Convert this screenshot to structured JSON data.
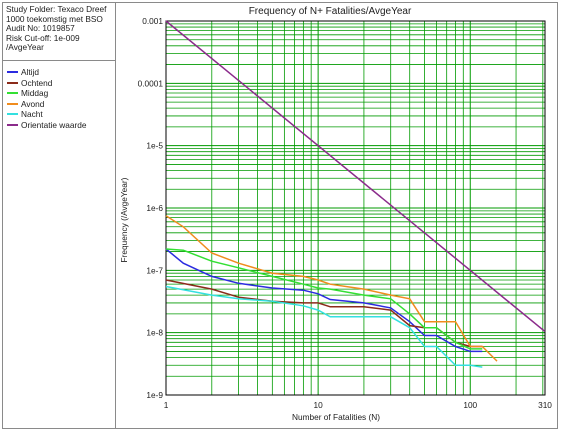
{
  "info": {
    "lines": [
      "Study Folder: Texaco Dreef",
      "1000 toekomstig met BSO",
      "Audit No: 1019857",
      "Risk Cut-off: 1e-009",
      "/AvgeYear"
    ]
  },
  "colors": {
    "grid": "#009a00",
    "Altijd": "#2b2be0",
    "Ochtend": "#8b2b1a",
    "Middag": "#33e033",
    "Avond": "#f08c1e",
    "Nacht": "#33e0e0",
    "Orientatie waarde": "#8b2b8b"
  },
  "chart_data": {
    "type": "line",
    "title": "Frequency of N+ Fatalities/AvgeYear",
    "xlabel": "Number of Fatalities (N)",
    "ylabel": "Frequency (/AvgeYear)",
    "xscale": "log",
    "yscale": "log",
    "xlim": [
      1,
      310
    ],
    "ylim": [
      1e-09,
      0.001
    ],
    "grid": true,
    "xticks": [
      {
        "value": 1,
        "label": "1"
      },
      {
        "value": 10,
        "label": "10"
      },
      {
        "value": 100,
        "label": "100"
      },
      {
        "value": 310,
        "label": "310"
      }
    ],
    "yticks": [
      {
        "value": 0.001,
        "label": "0.001"
      },
      {
        "value": 0.0001,
        "label": "0.0001"
      },
      {
        "value": 1e-05,
        "label": "1e-5"
      },
      {
        "value": 1e-06,
        "label": "1e-6"
      },
      {
        "value": 1e-07,
        "label": "1e-7"
      },
      {
        "value": 1e-08,
        "label": "1e-8"
      },
      {
        "value": 1e-09,
        "label": "1e-9"
      }
    ],
    "legend_position": "left-panel",
    "series": [
      {
        "name": "Altijd",
        "x": [
          1,
          1.3,
          2,
          3,
          5,
          8,
          10,
          12,
          20,
          30,
          40,
          50,
          60,
          80,
          100,
          120
        ],
        "y": [
          2.2e-07,
          1.3e-07,
          8e-08,
          6.2e-08,
          5.2e-08,
          4.8e-08,
          4.2e-08,
          3.4e-08,
          3e-08,
          2.5e-08,
          1.5e-08,
          9e-09,
          9e-09,
          6e-09,
          5e-09,
          5e-09
        ]
      },
      {
        "name": "Ochtend",
        "x": [
          1,
          2,
          3,
          5,
          8,
          10,
          12,
          20,
          30,
          40,
          50,
          60,
          80,
          100,
          120
        ],
        "y": [
          7e-08,
          5e-08,
          3.7e-08,
          3.2e-08,
          3e-08,
          3e-08,
          2.6e-08,
          2.6e-08,
          2.3e-08,
          1.3e-08,
          1.2e-08,
          1.2e-08,
          7e-09,
          6e-09,
          6e-09
        ]
      },
      {
        "name": "Middag",
        "x": [
          1,
          1.3,
          2,
          3,
          5,
          8,
          10,
          12,
          20,
          30,
          40,
          50,
          60,
          80,
          100,
          120
        ],
        "y": [
          2.2e-07,
          2.1e-07,
          1.4e-07,
          1.1e-07,
          8e-08,
          6e-08,
          5.2e-08,
          5e-08,
          4e-08,
          3.5e-08,
          2e-08,
          1.2e-08,
          1.2e-08,
          7e-09,
          5.5e-09,
          5.5e-09
        ]
      },
      {
        "name": "Avond",
        "x": [
          1,
          1.3,
          2,
          3,
          5,
          8,
          10,
          12,
          20,
          30,
          40,
          50,
          60,
          80,
          100,
          120,
          150
        ],
        "y": [
          7.5e-07,
          5e-07,
          1.9e-07,
          1.3e-07,
          9e-08,
          8e-08,
          7e-08,
          6e-08,
          5e-08,
          4e-08,
          3.5e-08,
          1.5e-08,
          1.5e-08,
          1.5e-08,
          6e-09,
          6e-09,
          3.5e-09
        ]
      },
      {
        "name": "Nacht",
        "x": [
          1,
          2,
          3,
          5,
          8,
          10,
          12,
          20,
          30,
          40,
          50,
          60,
          80,
          100,
          120
        ],
        "y": [
          5.5e-08,
          4e-08,
          3.5e-08,
          3.2e-08,
          2.7e-08,
          2.3e-08,
          1.8e-08,
          1.8e-08,
          1.8e-08,
          1.2e-08,
          6e-09,
          6e-09,
          3e-09,
          3e-09,
          2.8e-09
        ]
      },
      {
        "name": "Orientatie waarde",
        "x": [
          1,
          310
        ],
        "y": [
          0.001,
          1.04e-08
        ]
      }
    ]
  }
}
